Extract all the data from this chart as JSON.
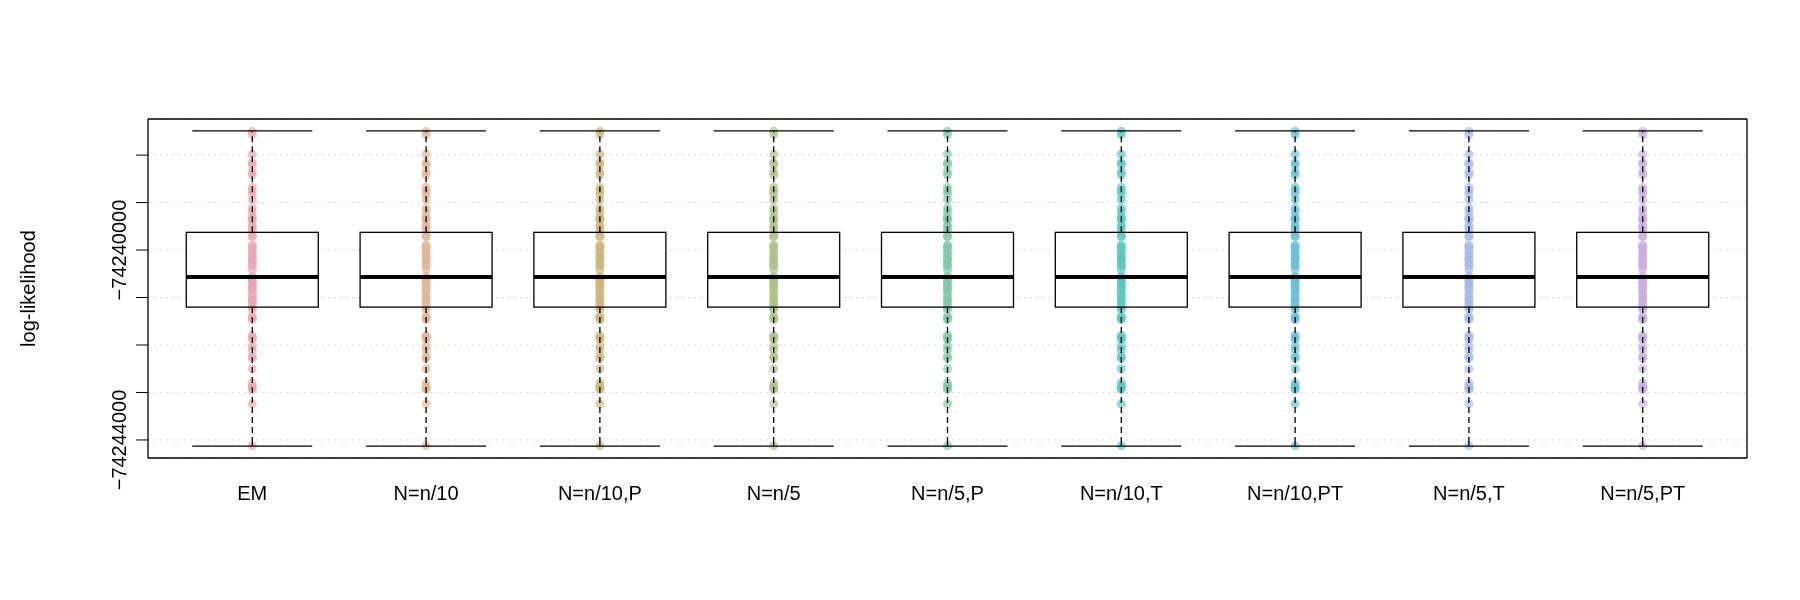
{
  "chart_data": {
    "type": "box",
    "ylabel": "log-likelihood",
    "categories": [
      "EM",
      "N=n/10",
      "N=n/10,P",
      "N=n/5",
      "N=n/5,P",
      "N=n/10,T",
      "N=n/10,PT",
      "N=n/5,T",
      "N=n/5,PT"
    ],
    "ylim": [
      -74244380,
      -74237240
    ],
    "yticks": [
      {
        "value": -74244000,
        "label": "−74244000"
      },
      {
        "value": -74243000,
        "label": null
      },
      {
        "value": -74242000,
        "label": null
      },
      {
        "value": -74241000,
        "label": null
      },
      {
        "value": -74240000,
        "label": "−74240000"
      },
      {
        "value": -74239000,
        "label": null
      },
      {
        "value": -74238000,
        "label": null
      }
    ],
    "grid": "y",
    "marker": "circle",
    "boxes": [
      {
        "low": -74244120,
        "q1": -74241200,
        "median": -74240570,
        "q3": -74239630,
        "high": -74237500
      },
      {
        "low": -74244120,
        "q1": -74241200,
        "median": -74240570,
        "q3": -74239630,
        "high": -74237500
      },
      {
        "low": -74244120,
        "q1": -74241200,
        "median": -74240570,
        "q3": -74239630,
        "high": -74237500
      },
      {
        "low": -74244120,
        "q1": -74241200,
        "median": -74240570,
        "q3": -74239630,
        "high": -74237500
      },
      {
        "low": -74244120,
        "q1": -74241200,
        "median": -74240570,
        "q3": -74239630,
        "high": -74237500
      },
      {
        "low": -74244120,
        "q1": -74241200,
        "median": -74240570,
        "q3": -74239630,
        "high": -74237500
      },
      {
        "low": -74244120,
        "q1": -74241200,
        "median": -74240570,
        "q3": -74239630,
        "high": -74237500
      },
      {
        "low": -74244120,
        "q1": -74241200,
        "median": -74240570,
        "q3": -74239630,
        "high": -74237500
      },
      {
        "low": -74244120,
        "q1": -74241200,
        "median": -74240570,
        "q3": -74239630,
        "high": -74237500
      }
    ],
    "series": [
      {
        "type": "scatter",
        "color": "#e8a4b4",
        "x": [
          "EM",
          "EM",
          "EM",
          "EM",
          "EM",
          "EM",
          "EM",
          "EM",
          "EM",
          "EM",
          "EM",
          "EM",
          "EM",
          "EM",
          "EM",
          "EM",
          "EM",
          "EM",
          "EM",
          "EM",
          "EM",
          "EM",
          "EM",
          "EM",
          "EM",
          "EM",
          "EM",
          "EM",
          "EM",
          "EM",
          "EM",
          "EM",
          "EM",
          "EM",
          "EM",
          "EM",
          "EM",
          "EM",
          "EM",
          "EM",
          "EM",
          "EM",
          "EM",
          "EM",
          "EM",
          "EM",
          "EM",
          "EM",
          "EM",
          "EM",
          "EM",
          "EM",
          "EM",
          "EM",
          "EM",
          "EM",
          "EM",
          "EM",
          "EM",
          "EM",
          "EM",
          "EM",
          "EM",
          "EM"
        ],
        "values": [
          -74237500,
          -74237570,
          -74237980,
          -74238160,
          -74238200,
          -74238350,
          -74238420,
          -74238680,
          -74238750,
          -74238820,
          -74238940,
          -74239120,
          -74239190,
          -74239300,
          -74239340,
          -74239380,
          -74239490,
          -74239520,
          -74239600,
          -74239710,
          -74239710,
          -74239890,
          -74239930,
          -74239960,
          -74240040,
          -74240080,
          -74240150,
          -74240190,
          -74240220,
          -74240300,
          -74240330,
          -74240410,
          -74240550,
          -74240590,
          -74240630,
          -74240660,
          -74240700,
          -74240770,
          -74240810,
          -74240850,
          -74240920,
          -74240990,
          -74241030,
          -74241070,
          -74241140,
          -74241210,
          -74241250,
          -74241400,
          -74241430,
          -74241470,
          -74241800,
          -74241840,
          -74241880,
          -74242020,
          -74242100,
          -74242240,
          -74242280,
          -74242500,
          -74242800,
          -74242870,
          -74242900,
          -74242940,
          -74243240,
          -74244120
        ]
      },
      {
        "type": "scatter",
        "color": "#e2b494",
        "x": [
          "N=n/10",
          "N=n/10",
          "N=n/10",
          "N=n/10",
          "N=n/10",
          "N=n/10",
          "N=n/10",
          "N=n/10",
          "N=n/10",
          "N=n/10",
          "N=n/10",
          "N=n/10",
          "N=n/10",
          "N=n/10",
          "N=n/10",
          "N=n/10",
          "N=n/10",
          "N=n/10",
          "N=n/10",
          "N=n/10",
          "N=n/10",
          "N=n/10",
          "N=n/10",
          "N=n/10",
          "N=n/10",
          "N=n/10",
          "N=n/10",
          "N=n/10",
          "N=n/10",
          "N=n/10",
          "N=n/10",
          "N=n/10",
          "N=n/10",
          "N=n/10",
          "N=n/10",
          "N=n/10",
          "N=n/10",
          "N=n/10",
          "N=n/10",
          "N=n/10",
          "N=n/10",
          "N=n/10",
          "N=n/10",
          "N=n/10",
          "N=n/10",
          "N=n/10",
          "N=n/10",
          "N=n/10",
          "N=n/10",
          "N=n/10",
          "N=n/10",
          "N=n/10",
          "N=n/10",
          "N=n/10",
          "N=n/10",
          "N=n/10",
          "N=n/10",
          "N=n/10",
          "N=n/10",
          "N=n/10",
          "N=n/10",
          "N=n/10",
          "N=n/10",
          "N=n/10"
        ],
        "values": [
          -74237500,
          -74237570,
          -74237980,
          -74238160,
          -74238200,
          -74238350,
          -74238420,
          -74238680,
          -74238750,
          -74238820,
          -74238940,
          -74239120,
          -74239190,
          -74239300,
          -74239340,
          -74239380,
          -74239490,
          -74239520,
          -74239600,
          -74239710,
          -74239710,
          -74239890,
          -74239930,
          -74239960,
          -74240040,
          -74240080,
          -74240150,
          -74240190,
          -74240220,
          -74240300,
          -74240330,
          -74240410,
          -74240550,
          -74240590,
          -74240630,
          -74240660,
          -74240700,
          -74240770,
          -74240810,
          -74240850,
          -74240920,
          -74240990,
          -74241030,
          -74241070,
          -74241140,
          -74241210,
          -74241250,
          -74241400,
          -74241430,
          -74241470,
          -74241800,
          -74241840,
          -74241880,
          -74242020,
          -74242100,
          -74242240,
          -74242280,
          -74242500,
          -74242800,
          -74242870,
          -74242900,
          -74242940,
          -74243240,
          -74244120
        ]
      },
      {
        "type": "scatter",
        "color": "#ccb478",
        "x": [
          "N=n/10,P",
          "N=n/10,P",
          "N=n/10,P",
          "N=n/10,P",
          "N=n/10,P",
          "N=n/10,P",
          "N=n/10,P",
          "N=n/10,P",
          "N=n/10,P",
          "N=n/10,P",
          "N=n/10,P",
          "N=n/10,P",
          "N=n/10,P",
          "N=n/10,P",
          "N=n/10,P",
          "N=n/10,P",
          "N=n/10,P",
          "N=n/10,P",
          "N=n/10,P",
          "N=n/10,P",
          "N=n/10,P",
          "N=n/10,P",
          "N=n/10,P",
          "N=n/10,P",
          "N=n/10,P",
          "N=n/10,P",
          "N=n/10,P",
          "N=n/10,P",
          "N=n/10,P",
          "N=n/10,P",
          "N=n/10,P",
          "N=n/10,P",
          "N=n/10,P",
          "N=n/10,P",
          "N=n/10,P",
          "N=n/10,P",
          "N=n/10,P",
          "N=n/10,P",
          "N=n/10,P",
          "N=n/10,P",
          "N=n/10,P",
          "N=n/10,P",
          "N=n/10,P",
          "N=n/10,P",
          "N=n/10,P",
          "N=n/10,P",
          "N=n/10,P",
          "N=n/10,P",
          "N=n/10,P",
          "N=n/10,P",
          "N=n/10,P",
          "N=n/10,P",
          "N=n/10,P",
          "N=n/10,P",
          "N=n/10,P",
          "N=n/10,P",
          "N=n/10,P",
          "N=n/10,P",
          "N=n/10,P",
          "N=n/10,P",
          "N=n/10,P",
          "N=n/10,P",
          "N=n/10,P",
          "N=n/10,P"
        ],
        "values": [
          -74237500,
          -74237570,
          -74237980,
          -74238160,
          -74238200,
          -74238350,
          -74238420,
          -74238680,
          -74238750,
          -74238820,
          -74238940,
          -74239120,
          -74239190,
          -74239300,
          -74239340,
          -74239380,
          -74239490,
          -74239520,
          -74239600,
          -74239710,
          -74239710,
          -74239890,
          -74239930,
          -74239960,
          -74240040,
          -74240080,
          -74240150,
          -74240190,
          -74240220,
          -74240300,
          -74240330,
          -74240410,
          -74240550,
          -74240590,
          -74240630,
          -74240660,
          -74240700,
          -74240770,
          -74240810,
          -74240850,
          -74240920,
          -74240990,
          -74241030,
          -74241070,
          -74241140,
          -74241210,
          -74241250,
          -74241400,
          -74241430,
          -74241470,
          -74241800,
          -74241840,
          -74241880,
          -74242020,
          -74242100,
          -74242240,
          -74242280,
          -74242500,
          -74242800,
          -74242870,
          -74242900,
          -74242940,
          -74243240,
          -74244120
        ]
      },
      {
        "type": "scatter",
        "color": "#acc084",
        "x": [
          "N=n/5",
          "N=n/5",
          "N=n/5",
          "N=n/5",
          "N=n/5",
          "N=n/5",
          "N=n/5",
          "N=n/5",
          "N=n/5",
          "N=n/5",
          "N=n/5",
          "N=n/5",
          "N=n/5",
          "N=n/5",
          "N=n/5",
          "N=n/5",
          "N=n/5",
          "N=n/5",
          "N=n/5",
          "N=n/5",
          "N=n/5",
          "N=n/5",
          "N=n/5",
          "N=n/5",
          "N=n/5",
          "N=n/5",
          "N=n/5",
          "N=n/5",
          "N=n/5",
          "N=n/5",
          "N=n/5",
          "N=n/5",
          "N=n/5",
          "N=n/5",
          "N=n/5",
          "N=n/5",
          "N=n/5",
          "N=n/5",
          "N=n/5",
          "N=n/5",
          "N=n/5",
          "N=n/5",
          "N=n/5",
          "N=n/5",
          "N=n/5",
          "N=n/5",
          "N=n/5",
          "N=n/5",
          "N=n/5",
          "N=n/5",
          "N=n/5",
          "N=n/5",
          "N=n/5",
          "N=n/5",
          "N=n/5",
          "N=n/5",
          "N=n/5",
          "N=n/5",
          "N=n/5",
          "N=n/5",
          "N=n/5",
          "N=n/5",
          "N=n/5",
          "N=n/5"
        ],
        "values": [
          -74237500,
          -74237570,
          -74237980,
          -74238160,
          -74238200,
          -74238350,
          -74238420,
          -74238680,
          -74238750,
          -74238820,
          -74238940,
          -74239120,
          -74239190,
          -74239300,
          -74239340,
          -74239380,
          -74239490,
          -74239520,
          -74239600,
          -74239710,
          -74239710,
          -74239890,
          -74239930,
          -74239960,
          -74240040,
          -74240080,
          -74240150,
          -74240190,
          -74240220,
          -74240300,
          -74240330,
          -74240410,
          -74240550,
          -74240590,
          -74240630,
          -74240660,
          -74240700,
          -74240770,
          -74240810,
          -74240850,
          -74240920,
          -74240990,
          -74241030,
          -74241070,
          -74241140,
          -74241210,
          -74241250,
          -74241400,
          -74241430,
          -74241470,
          -74241800,
          -74241840,
          -74241880,
          -74242020,
          -74242100,
          -74242240,
          -74242280,
          -74242500,
          -74242800,
          -74242870,
          -74242900,
          -74242940,
          -74243240,
          -74244120
        ]
      },
      {
        "type": "scatter",
        "color": "#7cc8a4",
        "x": [
          "N=n/5,P",
          "N=n/5,P",
          "N=n/5,P",
          "N=n/5,P",
          "N=n/5,P",
          "N=n/5,P",
          "N=n/5,P",
          "N=n/5,P",
          "N=n/5,P",
          "N=n/5,P",
          "N=n/5,P",
          "N=n/5,P",
          "N=n/5,P",
          "N=n/5,P",
          "N=n/5,P",
          "N=n/5,P",
          "N=n/5,P",
          "N=n/5,P",
          "N=n/5,P",
          "N=n/5,P",
          "N=n/5,P",
          "N=n/5,P",
          "N=n/5,P",
          "N=n/5,P",
          "N=n/5,P",
          "N=n/5,P",
          "N=n/5,P",
          "N=n/5,P",
          "N=n/5,P",
          "N=n/5,P",
          "N=n/5,P",
          "N=n/5,P",
          "N=n/5,P",
          "N=n/5,P",
          "N=n/5,P",
          "N=n/5,P",
          "N=n/5,P",
          "N=n/5,P",
          "N=n/5,P",
          "N=n/5,P",
          "N=n/5,P",
          "N=n/5,P",
          "N=n/5,P",
          "N=n/5,P",
          "N=n/5,P",
          "N=n/5,P",
          "N=n/5,P",
          "N=n/5,P",
          "N=n/5,P",
          "N=n/5,P",
          "N=n/5,P",
          "N=n/5,P",
          "N=n/5,P",
          "N=n/5,P",
          "N=n/5,P",
          "N=n/5,P",
          "N=n/5,P",
          "N=n/5,P",
          "N=n/5,P",
          "N=n/5,P",
          "N=n/5,P",
          "N=n/5,P",
          "N=n/5,P",
          "N=n/5,P"
        ],
        "values": [
          -74237500,
          -74237570,
          -74237980,
          -74238160,
          -74238200,
          -74238350,
          -74238420,
          -74238680,
          -74238750,
          -74238820,
          -74238940,
          -74239120,
          -74239190,
          -74239300,
          -74239340,
          -74239380,
          -74239490,
          -74239520,
          -74239600,
          -74239710,
          -74239710,
          -74239890,
          -74239930,
          -74239960,
          -74240040,
          -74240080,
          -74240150,
          -74240190,
          -74240220,
          -74240300,
          -74240330,
          -74240410,
          -74240550,
          -74240590,
          -74240630,
          -74240660,
          -74240700,
          -74240770,
          -74240810,
          -74240850,
          -74240920,
          -74240990,
          -74241030,
          -74241070,
          -74241140,
          -74241210,
          -74241250,
          -74241400,
          -74241430,
          -74241470,
          -74241800,
          -74241840,
          -74241880,
          -74242020,
          -74242100,
          -74242240,
          -74242280,
          -74242500,
          -74242800,
          -74242870,
          -74242900,
          -74242940,
          -74243240,
          -74244120
        ]
      },
      {
        "type": "scatter",
        "color": "#54c8c0",
        "x": [
          "N=n/10,T",
          "N=n/10,T",
          "N=n/10,T",
          "N=n/10,T",
          "N=n/10,T",
          "N=n/10,T",
          "N=n/10,T",
          "N=n/10,T",
          "N=n/10,T",
          "N=n/10,T",
          "N=n/10,T",
          "N=n/10,T",
          "N=n/10,T",
          "N=n/10,T",
          "N=n/10,T",
          "N=n/10,T",
          "N=n/10,T",
          "N=n/10,T",
          "N=n/10,T",
          "N=n/10,T",
          "N=n/10,T",
          "N=n/10,T",
          "N=n/10,T",
          "N=n/10,T",
          "N=n/10,T",
          "N=n/10,T",
          "N=n/10,T",
          "N=n/10,T",
          "N=n/10,T",
          "N=n/10,T",
          "N=n/10,T",
          "N=n/10,T",
          "N=n/10,T",
          "N=n/10,T",
          "N=n/10,T",
          "N=n/10,T",
          "N=n/10,T",
          "N=n/10,T",
          "N=n/10,T",
          "N=n/10,T",
          "N=n/10,T",
          "N=n/10,T",
          "N=n/10,T",
          "N=n/10,T",
          "N=n/10,T",
          "N=n/10,T",
          "N=n/10,T",
          "N=n/10,T",
          "N=n/10,T",
          "N=n/10,T",
          "N=n/10,T",
          "N=n/10,T",
          "N=n/10,T",
          "N=n/10,T",
          "N=n/10,T",
          "N=n/10,T",
          "N=n/10,T",
          "N=n/10,T",
          "N=n/10,T",
          "N=n/10,T",
          "N=n/10,T",
          "N=n/10,T",
          "N=n/10,T",
          "N=n/10,T"
        ],
        "values": [
          -74237500,
          -74237570,
          -74237980,
          -74238160,
          -74238200,
          -74238350,
          -74238420,
          -74238680,
          -74238750,
          -74238820,
          -74238940,
          -74239120,
          -74239190,
          -74239300,
          -74239340,
          -74239380,
          -74239490,
          -74239520,
          -74239600,
          -74239710,
          -74239710,
          -74239890,
          -74239930,
          -74239960,
          -74240040,
          -74240080,
          -74240150,
          -74240190,
          -74240220,
          -74240300,
          -74240330,
          -74240410,
          -74240550,
          -74240590,
          -74240630,
          -74240660,
          -74240700,
          -74240770,
          -74240810,
          -74240850,
          -74240920,
          -74240990,
          -74241030,
          -74241070,
          -74241140,
          -74241210,
          -74241250,
          -74241400,
          -74241430,
          -74241470,
          -74241800,
          -74241840,
          -74241880,
          -74242020,
          -74242100,
          -74242240,
          -74242280,
          -74242500,
          -74242800,
          -74242870,
          -74242900,
          -74242940,
          -74243240,
          -74244120
        ]
      },
      {
        "type": "scatter",
        "color": "#64c0d8",
        "x": [
          "N=n/10,PT",
          "N=n/10,PT",
          "N=n/10,PT",
          "N=n/10,PT",
          "N=n/10,PT",
          "N=n/10,PT",
          "N=n/10,PT",
          "N=n/10,PT",
          "N=n/10,PT",
          "N=n/10,PT",
          "N=n/10,PT",
          "N=n/10,PT",
          "N=n/10,PT",
          "N=n/10,PT",
          "N=n/10,PT",
          "N=n/10,PT",
          "N=n/10,PT",
          "N=n/10,PT",
          "N=n/10,PT",
          "N=n/10,PT",
          "N=n/10,PT",
          "N=n/10,PT",
          "N=n/10,PT",
          "N=n/10,PT",
          "N=n/10,PT",
          "N=n/10,PT",
          "N=n/10,PT",
          "N=n/10,PT",
          "N=n/10,PT",
          "N=n/10,PT",
          "N=n/10,PT",
          "N=n/10,PT",
          "N=n/10,PT",
          "N=n/10,PT",
          "N=n/10,PT",
          "N=n/10,PT",
          "N=n/10,PT",
          "N=n/10,PT",
          "N=n/10,PT",
          "N=n/10,PT",
          "N=n/10,PT",
          "N=n/10,PT",
          "N=n/10,PT",
          "N=n/10,PT",
          "N=n/10,PT",
          "N=n/10,PT",
          "N=n/10,PT",
          "N=n/10,PT",
          "N=n/10,PT",
          "N=n/10,PT",
          "N=n/10,PT",
          "N=n/10,PT",
          "N=n/10,PT",
          "N=n/10,PT",
          "N=n/10,PT",
          "N=n/10,PT",
          "N=n/10,PT",
          "N=n/10,PT",
          "N=n/10,PT",
          "N=n/10,PT",
          "N=n/10,PT",
          "N=n/10,PT",
          "N=n/10,PT",
          "N=n/10,PT"
        ],
        "values": [
          -74237500,
          -74237570,
          -74237980,
          -74238160,
          -74238200,
          -74238350,
          -74238420,
          -74238680,
          -74238750,
          -74238820,
          -74238940,
          -74239120,
          -74239190,
          -74239300,
          -74239340,
          -74239380,
          -74239490,
          -74239520,
          -74239600,
          -74239710,
          -74239710,
          -74239890,
          -74239930,
          -74239960,
          -74240040,
          -74240080,
          -74240150,
          -74240190,
          -74240220,
          -74240300,
          -74240330,
          -74240410,
          -74240550,
          -74240590,
          -74240630,
          -74240660,
          -74240700,
          -74240770,
          -74240810,
          -74240850,
          -74240920,
          -74240990,
          -74241030,
          -74241070,
          -74241140,
          -74241210,
          -74241250,
          -74241400,
          -74241430,
          -74241470,
          -74241800,
          -74241840,
          -74241880,
          -74242020,
          -74242100,
          -74242240,
          -74242280,
          -74242500,
          -74242800,
          -74242870,
          -74242900,
          -74242940,
          -74243240,
          -74244120
        ]
      },
      {
        "type": "scatter",
        "color": "#a4b8e8",
        "x": [
          "N=n/5,T",
          "N=n/5,T",
          "N=n/5,T",
          "N=n/5,T",
          "N=n/5,T",
          "N=n/5,T",
          "N=n/5,T",
          "N=n/5,T",
          "N=n/5,T",
          "N=n/5,T",
          "N=n/5,T",
          "N=n/5,T",
          "N=n/5,T",
          "N=n/5,T",
          "N=n/5,T",
          "N=n/5,T",
          "N=n/5,T",
          "N=n/5,T",
          "N=n/5,T",
          "N=n/5,T",
          "N=n/5,T",
          "N=n/5,T",
          "N=n/5,T",
          "N=n/5,T",
          "N=n/5,T",
          "N=n/5,T",
          "N=n/5,T",
          "N=n/5,T",
          "N=n/5,T",
          "N=n/5,T",
          "N=n/5,T",
          "N=n/5,T",
          "N=n/5,T",
          "N=n/5,T",
          "N=n/5,T",
          "N=n/5,T",
          "N=n/5,T",
          "N=n/5,T",
          "N=n/5,T",
          "N=n/5,T",
          "N=n/5,T",
          "N=n/5,T",
          "N=n/5,T",
          "N=n/5,T",
          "N=n/5,T",
          "N=n/5,T",
          "N=n/5,T",
          "N=n/5,T",
          "N=n/5,T",
          "N=n/5,T",
          "N=n/5,T",
          "N=n/5,T",
          "N=n/5,T",
          "N=n/5,T",
          "N=n/5,T",
          "N=n/5,T",
          "N=n/5,T",
          "N=n/5,T",
          "N=n/5,T",
          "N=n/5,T",
          "N=n/5,T",
          "N=n/5,T",
          "N=n/5,T",
          "N=n/5,T"
        ],
        "values": [
          -74237500,
          -74237570,
          -74237980,
          -74238160,
          -74238200,
          -74238350,
          -74238420,
          -74238680,
          -74238750,
          -74238820,
          -74238940,
          -74239120,
          -74239190,
          -74239300,
          -74239340,
          -74239380,
          -74239490,
          -74239520,
          -74239600,
          -74239710,
          -74239710,
          -74239890,
          -74239930,
          -74239960,
          -74240040,
          -74240080,
          -74240150,
          -74240190,
          -74240220,
          -74240300,
          -74240330,
          -74240410,
          -74240550,
          -74240590,
          -74240630,
          -74240660,
          -74240700,
          -74240770,
          -74240810,
          -74240850,
          -74240920,
          -74240990,
          -74241030,
          -74241070,
          -74241140,
          -74241210,
          -74241250,
          -74241400,
          -74241430,
          -74241470,
          -74241800,
          -74241840,
          -74241880,
          -74242020,
          -74242100,
          -74242240,
          -74242280,
          -74242500,
          -74242800,
          -74242870,
          -74242900,
          -74242940,
          -74243240,
          -74244120
        ]
      },
      {
        "type": "scatter",
        "color": "#c8aae0",
        "x": [
          "N=n/5,PT",
          "N=n/5,PT",
          "N=n/5,PT",
          "N=n/5,PT",
          "N=n/5,PT",
          "N=n/5,PT",
          "N=n/5,PT",
          "N=n/5,PT",
          "N=n/5,PT",
          "N=n/5,PT",
          "N=n/5,PT",
          "N=n/5,PT",
          "N=n/5,PT",
          "N=n/5,PT",
          "N=n/5,PT",
          "N=n/5,PT",
          "N=n/5,PT",
          "N=n/5,PT",
          "N=n/5,PT",
          "N=n/5,PT",
          "N=n/5,PT",
          "N=n/5,PT",
          "N=n/5,PT",
          "N=n/5,PT",
          "N=n/5,PT",
          "N=n/5,PT",
          "N=n/5,PT",
          "N=n/5,PT",
          "N=n/5,PT",
          "N=n/5,PT",
          "N=n/5,PT",
          "N=n/5,PT",
          "N=n/5,PT",
          "N=n/5,PT",
          "N=n/5,PT",
          "N=n/5,PT",
          "N=n/5,PT",
          "N=n/5,PT",
          "N=n/5,PT",
          "N=n/5,PT",
          "N=n/5,PT",
          "N=n/5,PT",
          "N=n/5,PT",
          "N=n/5,PT",
          "N=n/5,PT",
          "N=n/5,PT",
          "N=n/5,PT",
          "N=n/5,PT",
          "N=n/5,PT",
          "N=n/5,PT",
          "N=n/5,PT",
          "N=n/5,PT",
          "N=n/5,PT",
          "N=n/5,PT",
          "N=n/5,PT",
          "N=n/5,PT",
          "N=n/5,PT",
          "N=n/5,PT",
          "N=n/5,PT",
          "N=n/5,PT",
          "N=n/5,PT",
          "N=n/5,PT",
          "N=n/5,PT",
          "N=n/5,PT"
        ],
        "values": [
          -74237500,
          -74237570,
          -74237980,
          -74238160,
          -74238200,
          -74238350,
          -74238420,
          -74238680,
          -74238750,
          -74238820,
          -74238940,
          -74239120,
          -74239190,
          -74239300,
          -74239340,
          -74239380,
          -74239490,
          -74239520,
          -74239600,
          -74239710,
          -74239710,
          -74239890,
          -74239930,
          -74239960,
          -74240040,
          -74240080,
          -74240150,
          -74240190,
          -74240220,
          -74240300,
          -74240330,
          -74240410,
          -74240550,
          -74240590,
          -74240630,
          -74240660,
          -74240700,
          -74240770,
          -74240810,
          -74240850,
          -74240920,
          -74240990,
          -74241030,
          -74241070,
          -74241140,
          -74241210,
          -74241250,
          -74241400,
          -74241430,
          -74241470,
          -74241800,
          -74241840,
          -74241880,
          -74242020,
          -74242100,
          -74242240,
          -74242280,
          -74242500,
          -74242800,
          -74242870,
          -74242900,
          -74242940,
          -74243240,
          -74244120
        ]
      }
    ]
  }
}
